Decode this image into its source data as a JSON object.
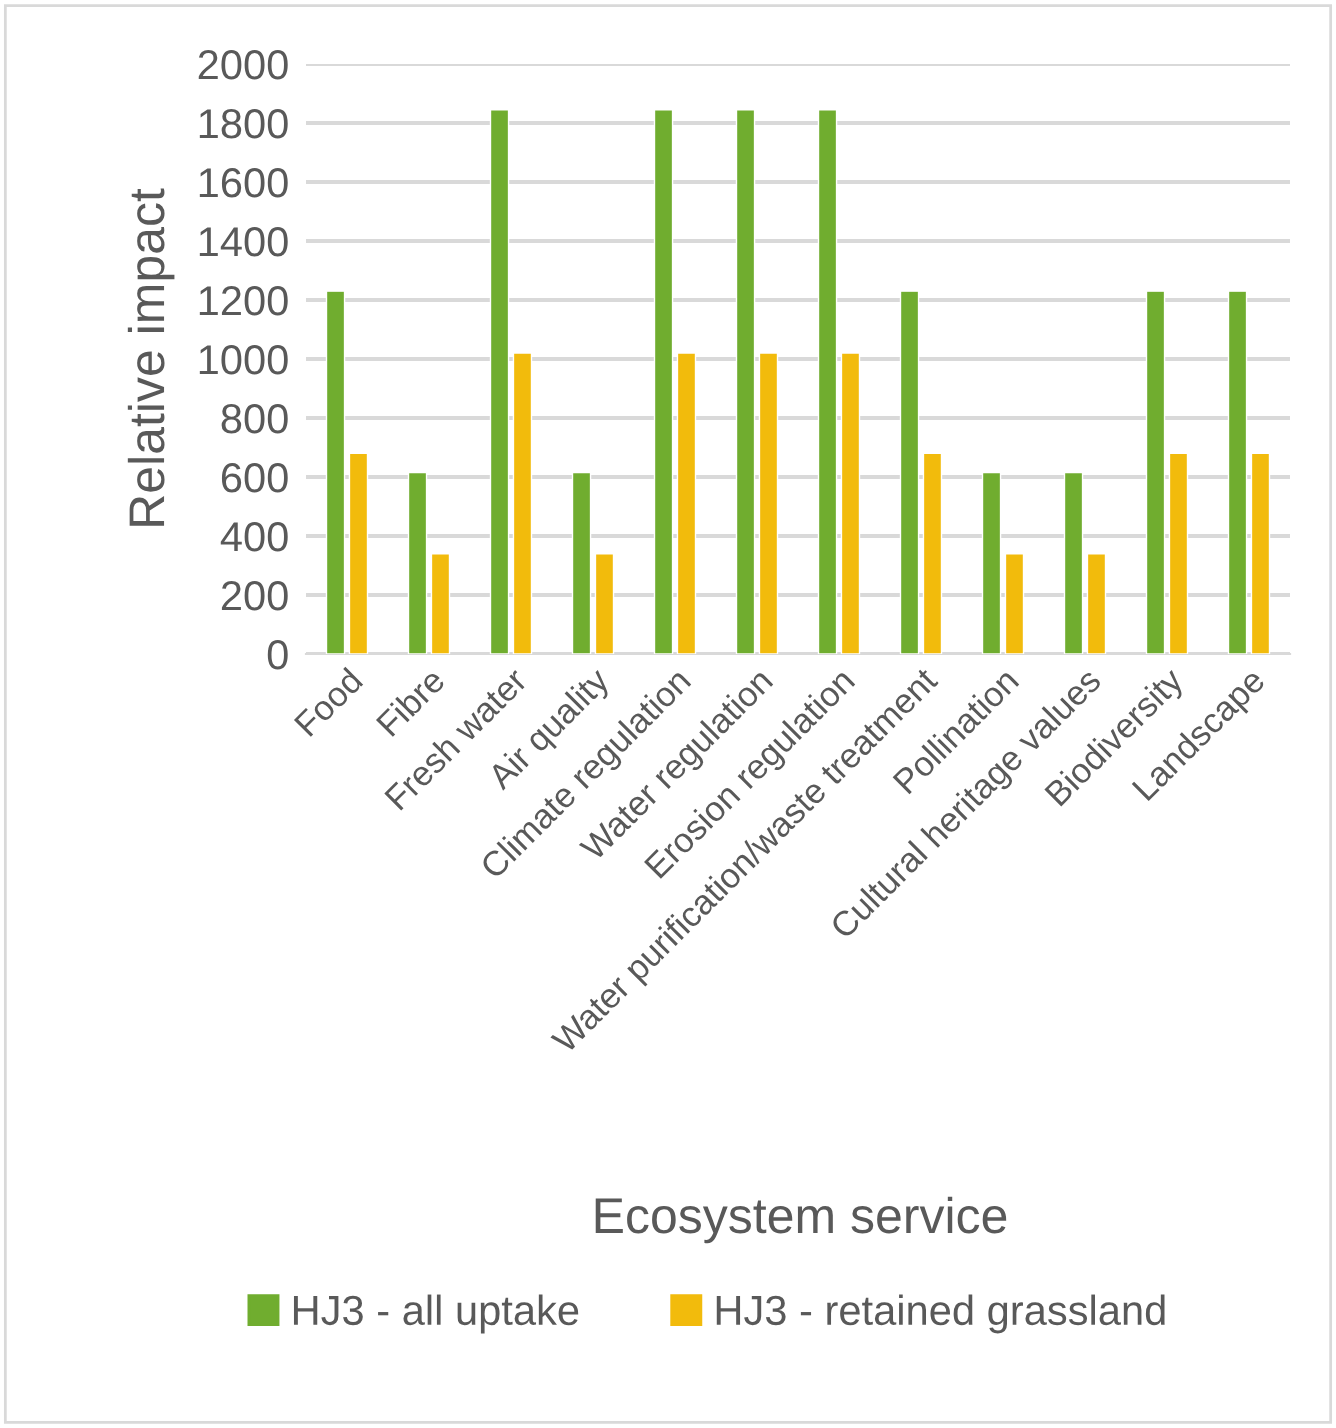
{
  "chart_data": {
    "type": "bar",
    "xlabel": "Ecosystem service",
    "ylabel": "Relative impact",
    "categories": [
      "Food",
      "Fibre",
      "Fresh water",
      "Air quality",
      "Climate regulation",
      "Water regulation",
      "Erosion regulation",
      "Water purification/waste treatment",
      "Pollination",
      "Cultural heritage values",
      "Biodiversity",
      "Landscape"
    ],
    "series": [
      {
        "name": "HJ3 - all uptake",
        "color": "#70ad2f",
        "values": [
          1230,
          615,
          1845,
          615,
          1845,
          1845,
          1845,
          1230,
          615,
          615,
          1230,
          1230
        ]
      },
      {
        "name": "HJ3 - retained grassland",
        "color": "#f2bb0c",
        "values": [
          680,
          340,
          1020,
          340,
          1020,
          1020,
          1020,
          680,
          340,
          340,
          680,
          680
        ]
      }
    ],
    "ylim": [
      0,
      2000
    ],
    "yticks": [
      0,
      200,
      400,
      600,
      800,
      1000,
      1200,
      1400,
      1600,
      1800,
      2000
    ],
    "grid": "y",
    "legend": "bottom"
  }
}
